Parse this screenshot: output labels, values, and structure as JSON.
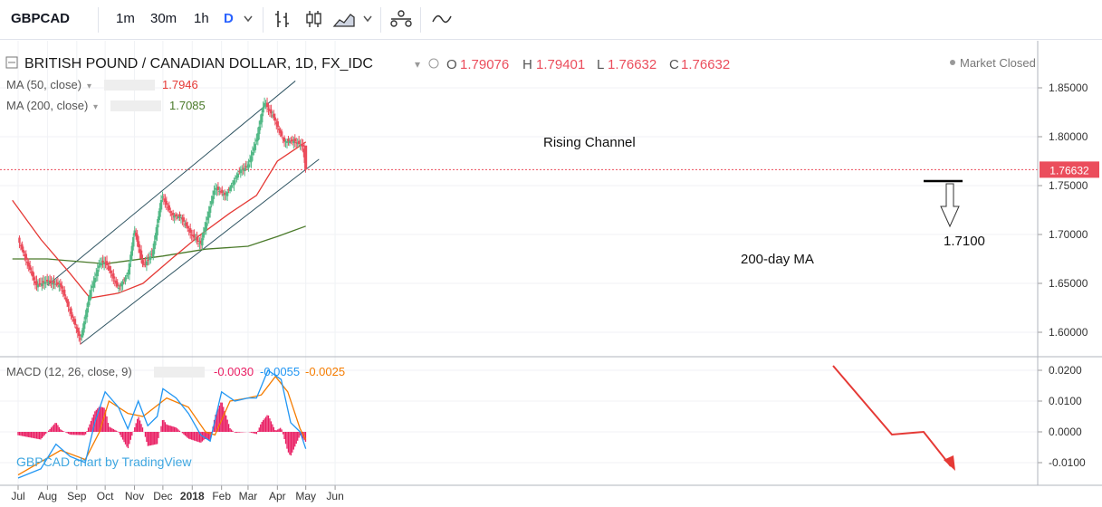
{
  "toolbar": {
    "symbol": "GBPCAD",
    "timeframes": [
      "1m",
      "30m",
      "1h",
      "D"
    ],
    "active_timeframe": "D",
    "icons": [
      "chevron-down-icon",
      "bar-style-icon",
      "candle-style-icon",
      "indicators-icon",
      "chevron-down-icon",
      "compare-icon",
      "drawing-icon"
    ]
  },
  "legend": {
    "instrument": "BRITISH POUND / CANADIAN DOLLAR, 1D, FX_IDC",
    "open_label": "O",
    "open": "1.79076",
    "high_label": "H",
    "high": "1.79401",
    "low_label": "L",
    "low": "1.76632",
    "close_label": "C",
    "close": "1.76632",
    "market_status": "Market Closed",
    "ma50_label": "MA (50, close)",
    "ma50_value": "1.7946",
    "ma200_label": "MA (200, close)",
    "ma200_value": "1.7085",
    "macd_label": "MACD (12, 26, close, 9)",
    "macd_hist": "-0.0030",
    "macd_line": "-0.0055",
    "macd_signal": "-0.0025"
  },
  "annotations": {
    "rising_channel": "Rising Channel",
    "ma200": "200-day MA",
    "target": "1.7100"
  },
  "watermark": "GBPCAD chart by TradingView",
  "colors": {
    "up": "#53b987",
    "down": "#eb4d5c",
    "ma50": "#e53935",
    "ma200": "#4a7a2a",
    "macd": "#2196f3",
    "signal": "#f57c00",
    "hist": "#e91e63",
    "channel": "#2e5361"
  },
  "chart_data": [
    {
      "type": "candlestick",
      "title": "BRITISH POUND / CANADIAN DOLLAR, 1D, FX_IDC",
      "ylim": [
        1.575,
        1.87
      ],
      "y_ticks": [
        "1.85000",
        "1.80000",
        "1.75000",
        "1.70000",
        "1.65000",
        "1.60000"
      ],
      "x_ticks": [
        "Jul",
        "Aug",
        "Sep",
        "Oct",
        "Nov",
        "Dec",
        "2018",
        "Feb",
        "Mar",
        "Apr",
        "May",
        "Jun"
      ],
      "last_price": "1.76632",
      "key_points": [
        [
          "2017-07-01",
          1.695
        ],
        [
          "2017-07-20",
          1.648
        ],
        [
          "2017-08-01",
          1.652
        ],
        [
          "2017-08-15",
          1.648
        ],
        [
          "2017-09-05",
          1.592
        ],
        [
          "2017-09-15",
          1.64
        ],
        [
          "2017-09-25",
          1.67
        ],
        [
          "2017-10-01",
          1.672
        ],
        [
          "2017-10-15",
          1.645
        ],
        [
          "2017-10-25",
          1.66
        ],
        [
          "2017-11-01",
          1.705
        ],
        [
          "2017-11-10",
          1.668
        ],
        [
          "2017-11-20",
          1.68
        ],
        [
          "2017-11-30",
          1.74
        ],
        [
          "2017-12-10",
          1.72
        ],
        [
          "2017-12-20",
          1.718
        ],
        [
          "2017-12-31",
          1.7
        ],
        [
          "2018-01-10",
          1.69
        ],
        [
          "2018-01-25",
          1.748
        ],
        [
          "2018-02-05",
          1.74
        ],
        [
          "2018-02-20",
          1.765
        ],
        [
          "2018-03-01",
          1.77
        ],
        [
          "2018-03-10",
          1.797
        ],
        [
          "2018-03-18",
          1.835
        ],
        [
          "2018-03-28",
          1.82
        ],
        [
          "2018-04-08",
          1.795
        ],
        [
          "2018-04-18",
          1.796
        ],
        [
          "2018-04-28",
          1.79
        ],
        [
          "2018-05-01",
          1.76632
        ]
      ],
      "series": [
        {
          "name": "MA (50, close)",
          "values": [
            [
              "2017-06-25",
              1.735
            ],
            [
              "2017-07-25",
              1.695
            ],
            [
              "2017-08-25",
              1.66
            ],
            [
              "2017-09-15",
              1.635
            ],
            [
              "2017-10-15",
              1.64
            ],
            [
              "2017-11-10",
              1.65
            ],
            [
              "2017-12-10",
              1.675
            ],
            [
              "2018-01-10",
              1.7
            ],
            [
              "2018-02-10",
              1.722
            ],
            [
              "2018-03-10",
              1.74
            ],
            [
              "2018-04-01",
              1.775
            ],
            [
              "2018-05-01",
              1.7946
            ]
          ]
        },
        {
          "name": "MA (200, close)",
          "values": [
            [
              "2017-06-25",
              1.675
            ],
            [
              "2017-08-01",
              1.675
            ],
            [
              "2017-10-01",
              1.67
            ],
            [
              "2017-12-01",
              1.678
            ],
            [
              "2018-01-15",
              1.685
            ],
            [
              "2018-03-01",
              1.688
            ],
            [
              "2018-04-01",
              1.698
            ],
            [
              "2018-05-01",
              1.7085
            ]
          ]
        }
      ],
      "channel": {
        "upper": [
          [
            "2017-08-01",
            1.648
          ],
          [
            "2018-04-20",
            1.857
          ]
        ],
        "lower": [
          [
            "2017-09-05",
            1.588
          ],
          [
            "2018-05-15",
            1.777
          ]
        ]
      }
    },
    {
      "type": "macd",
      "title": "MACD (12, 26, close, 9)",
      "ylim": [
        -0.015,
        0.0235
      ],
      "y_ticks": [
        "0.0200",
        "0.0100",
        "0.0000",
        "-0.0100"
      ],
      "series": [
        {
          "name": "MACD",
          "values": [
            [
              "2017-07-01",
              -0.015
            ],
            [
              "2017-07-25",
              -0.012
            ],
            [
              "2017-08-10",
              -0.004
            ],
            [
              "2017-08-25",
              -0.008
            ],
            [
              "2017-09-10",
              -0.01
            ],
            [
              "2017-09-20",
              0.003
            ],
            [
              "2017-10-01",
              0.013
            ],
            [
              "2017-10-15",
              0.008
            ],
            [
              "2017-10-25",
              0.001
            ],
            [
              "2017-11-05",
              0.01
            ],
            [
              "2017-11-15",
              0.002
            ],
            [
              "2017-11-25",
              0.005
            ],
            [
              "2017-12-01",
              0.014
            ],
            [
              "2017-12-15",
              0.011
            ],
            [
              "2017-12-28",
              0.006
            ],
            [
              "2018-01-10",
              -0.001
            ],
            [
              "2018-01-20",
              -0.003
            ],
            [
              "2018-02-01",
              0.013
            ],
            [
              "2018-02-15",
              0.01
            ],
            [
              "2018-03-01",
              0.011
            ],
            [
              "2018-03-10",
              0.011
            ],
            [
              "2018-03-22",
              0.02
            ],
            [
              "2018-04-05",
              0.017
            ],
            [
              "2018-04-15",
              0.003
            ],
            [
              "2018-04-25",
              0.0
            ],
            [
              "2018-05-01",
              -0.0055
            ]
          ]
        },
        {
          "name": "Signal",
          "values": [
            [
              "2017-07-01",
              -0.014
            ],
            [
              "2017-08-15",
              -0.006
            ],
            [
              "2017-09-10",
              -0.009
            ],
            [
              "2017-09-25",
              0.0
            ],
            [
              "2017-10-05",
              0.01
            ],
            [
              "2017-10-25",
              0.006
            ],
            [
              "2017-11-10",
              0.005
            ],
            [
              "2017-12-05",
              0.011
            ],
            [
              "2017-12-28",
              0.008
            ],
            [
              "2018-01-15",
              0.0
            ],
            [
              "2018-01-25",
              -0.001
            ],
            [
              "2018-02-10",
              0.01
            ],
            [
              "2018-03-01",
              0.011
            ],
            [
              "2018-03-15",
              0.012
            ],
            [
              "2018-03-30",
              0.018
            ],
            [
              "2018-04-12",
              0.013
            ],
            [
              "2018-04-25",
              0.001
            ],
            [
              "2018-05-01",
              -0.0025
            ]
          ]
        }
      ],
      "histogram_note": "MACD minus signal, plotted as magenta columns"
    }
  ]
}
